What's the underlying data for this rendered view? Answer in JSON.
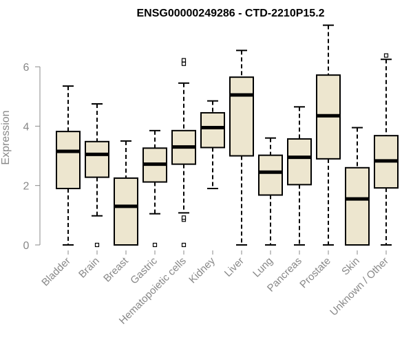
{
  "chart_data": {
    "type": "box",
    "title": "ENSG00000249286 - CTD-2210P15.2",
    "xlabel": "",
    "ylabel": "Expression",
    "ylim": [
      0,
      7.6
    ],
    "yticks": [
      0,
      2,
      4,
      6
    ],
    "box_fill": "#ede6cf",
    "categories": [
      "Bladder",
      "Brain",
      "Breast",
      "Gastric",
      "Hematopoietic cells",
      "Kidney",
      "Liver",
      "Lung",
      "Pancreas",
      "Prostate",
      "Skin",
      "Unknown / Other"
    ],
    "boxes": [
      {
        "min": 0,
        "q1": 1.9,
        "median": 3.15,
        "q3": 3.82,
        "max": 5.35,
        "outliers": []
      },
      {
        "min": 0.98,
        "q1": 2.28,
        "median": 3.05,
        "q3": 3.48,
        "max": 4.75,
        "outliers": [
          0
        ]
      },
      {
        "min": 0,
        "q1": 0,
        "median": 1.3,
        "q3": 2.25,
        "max": 3.5,
        "outliers": []
      },
      {
        "min": 1.05,
        "q1": 2.12,
        "median": 2.72,
        "q3": 3.26,
        "max": 3.85,
        "outliers": [
          0
        ]
      },
      {
        "min": 1.08,
        "q1": 2.72,
        "median": 3.3,
        "q3": 3.85,
        "max": 5.45,
        "outliers": [
          0.85,
          0.92,
          6.1,
          6.22,
          0
        ]
      },
      {
        "min": 1.9,
        "q1": 3.28,
        "median": 3.95,
        "q3": 4.45,
        "max": 4.85,
        "outliers": []
      },
      {
        "min": 0,
        "q1": 3.0,
        "median": 5.05,
        "q3": 5.65,
        "max": 6.55,
        "outliers": []
      },
      {
        "min": 0,
        "q1": 1.68,
        "median": 2.45,
        "q3": 3.02,
        "max": 3.6,
        "outliers": []
      },
      {
        "min": 0,
        "q1": 2.03,
        "median": 2.95,
        "q3": 3.57,
        "max": 4.65,
        "outliers": []
      },
      {
        "min": 0,
        "q1": 2.9,
        "median": 4.35,
        "q3": 5.72,
        "max": 7.4,
        "outliers": []
      },
      {
        "min": 0,
        "q1": 0,
        "median": 1.55,
        "q3": 2.6,
        "max": 3.95,
        "outliers": []
      },
      {
        "min": 0,
        "q1": 1.92,
        "median": 2.83,
        "q3": 3.68,
        "max": 6.25,
        "outliers": [
          6.38
        ]
      }
    ]
  }
}
